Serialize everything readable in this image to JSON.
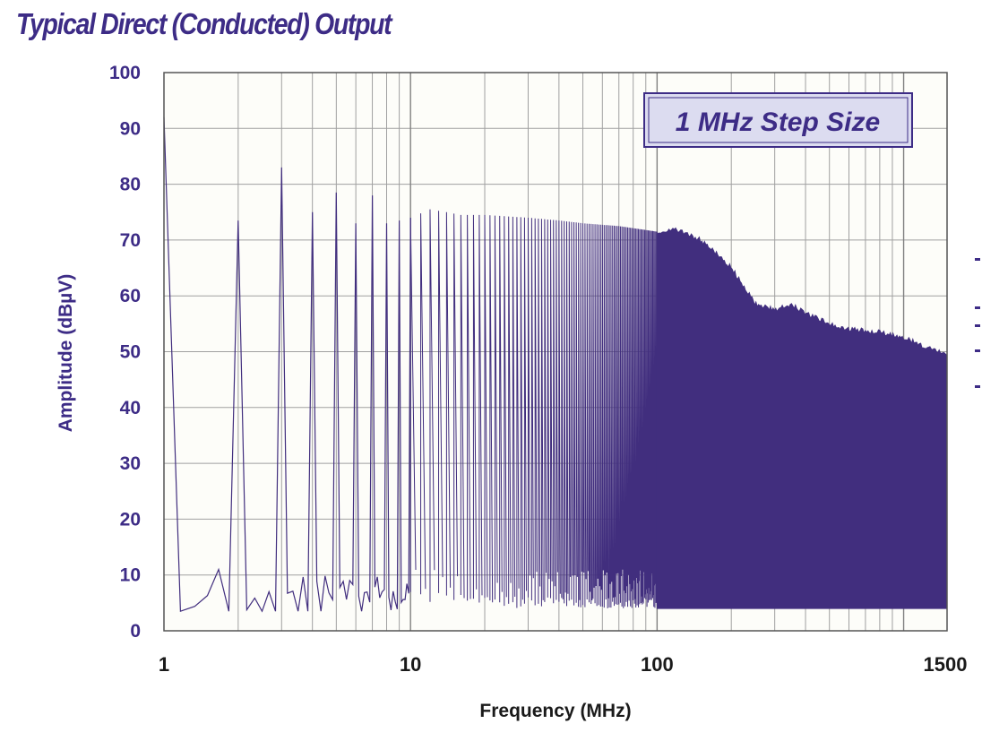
{
  "title": "Typical Direct (Conducted) Output",
  "colors": {
    "accent": "#3d2c86",
    "fill": "#412e7e",
    "plot_background": "#fdfdf9",
    "grid": "#a0a0a0",
    "legend_fill": "#dcdcf0"
  },
  "chart_data": {
    "type": "line",
    "title": "",
    "xlabel": "Frequency (MHz)",
    "ylabel": "Amplitude (dBµV)",
    "xscale": "log",
    "xlim": [
      1,
      1500
    ],
    "ylim": [
      0,
      100
    ],
    "grid": true,
    "xticks": [
      "1",
      "10",
      "100",
      "1500"
    ],
    "yticks": [
      "0",
      "10",
      "20",
      "30",
      "40",
      "50",
      "60",
      "70",
      "80",
      "90",
      "100"
    ],
    "legend_text": "1 MHz Step Size",
    "legend_position": "top-right",
    "series": [
      {
        "harmonic_peaks": {
          "x": [
            1,
            2,
            3,
            4,
            5,
            6,
            7,
            8,
            9,
            10,
            12,
            14,
            16,
            20,
            30,
            40,
            50,
            70,
            100,
            120
          ],
          "y": [
            92,
            73.5,
            83,
            75,
            78.5,
            73,
            78,
            73,
            73.5,
            74,
            75.5,
            75,
            74.5,
            74.5,
            74,
            73.5,
            73,
            72.5,
            71.5,
            71.5
          ]
        },
        "peak_envelope": {
          "x": [
            100,
            120,
            150,
            170,
            200,
            230,
            250,
            300,
            350,
            400,
            500,
            600,
            800,
            1000,
            1200,
            1500
          ],
          "y": [
            71.5,
            71.8,
            70,
            68,
            65,
            61,
            58.5,
            57.5,
            58.5,
            57,
            55,
            54,
            53.5,
            52.5,
            51,
            49.5
          ]
        },
        "noise_floor": {
          "x": [
            1,
            1.1,
            1.3,
            1.5,
            1.7,
            2,
            3,
            5,
            10,
            30,
            100,
            1500
          ],
          "y": [
            4,
            4,
            4,
            8.5,
            9,
            5,
            6,
            6,
            6,
            5,
            5,
            4
          ]
        }
      }
    ]
  }
}
